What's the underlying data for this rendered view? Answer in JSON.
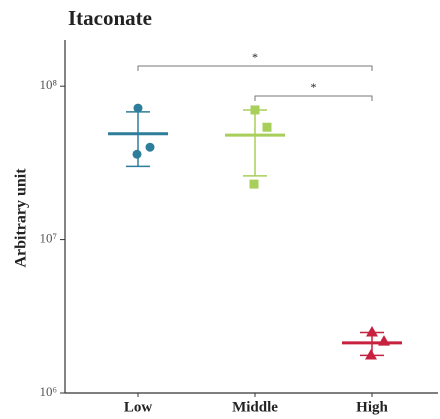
{
  "chart_data": {
    "type": "scatter",
    "title": "Itaconate",
    "ylabel": "Arbitrary unit",
    "categories": [
      "Low",
      "Middle",
      "High"
    ],
    "log_y": true,
    "ylim": [
      1000000,
      200000000
    ],
    "yticks": [
      {
        "value": 1000000,
        "label": "10⁶"
      },
      {
        "value": 10000000,
        "label": "10⁷"
      },
      {
        "value": 100000000,
        "label": "10⁸"
      }
    ],
    "series": [
      {
        "color": "#2e7d9a",
        "marker": "circle",
        "values": [
          72000000,
          40000000,
          36000000
        ],
        "mean": 49000000,
        "sd": 19000000
      },
      {
        "color": "#a8cf5a",
        "marker": "square",
        "values": [
          70000000,
          54000000,
          23000000
        ],
        "mean": 48000000,
        "sd": 22000000
      },
      {
        "color": "#c8203f",
        "marker": "triangle",
        "values": [
          2500000,
          2180000,
          1770000
        ],
        "mean": 2120000,
        "sd": 360000
      }
    ],
    "comparisons": [
      {
        "from": 0,
        "to": 2,
        "label": "*"
      },
      {
        "from": 1,
        "to": 2,
        "label": "*"
      }
    ]
  }
}
